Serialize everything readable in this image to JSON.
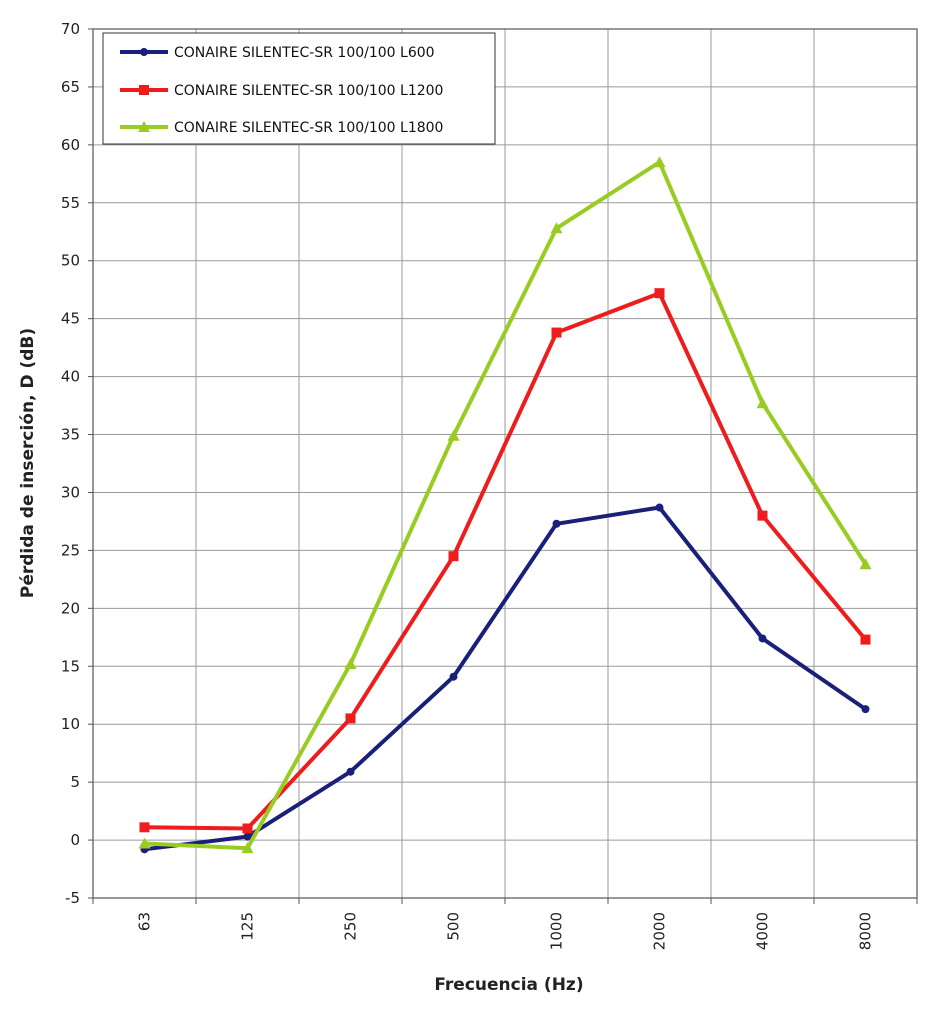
{
  "chart_data": {
    "type": "line",
    "title": "",
    "xlabel": "Frecuencia (Hz)",
    "ylabel": "Pérdida de inserción, D (dB)",
    "categories": [
      "63",
      "125",
      "250",
      "500",
      "1000",
      "2000",
      "4000",
      "8000"
    ],
    "ylim": [
      -5,
      70
    ],
    "yticks": [
      -5,
      0,
      5,
      10,
      15,
      20,
      25,
      30,
      35,
      40,
      45,
      50,
      55,
      60,
      65,
      70
    ],
    "grid": true,
    "legend_position": "top-left",
    "series": [
      {
        "name": "CONAIRE SILENTEC-SR 100/100 L600",
        "color": "#1a1f7a",
        "marker": "circle",
        "values": [
          -0.8,
          0.3,
          5.9,
          14.1,
          27.3,
          28.7,
          17.4,
          11.3
        ]
      },
      {
        "name": "CONAIRE SILENTEC-SR 100/100 L1200",
        "color": "#ee1c1c",
        "marker": "square",
        "values": [
          1.1,
          1.0,
          10.5,
          24.5,
          43.8,
          47.2,
          28.0,
          17.3
        ]
      },
      {
        "name": "CONAIRE SILENTEC-SR 100/100 L1800",
        "color": "#99cc22",
        "marker": "triangle",
        "values": [
          -0.3,
          -0.7,
          15.2,
          34.9,
          52.8,
          58.5,
          37.7,
          23.8
        ]
      }
    ]
  }
}
